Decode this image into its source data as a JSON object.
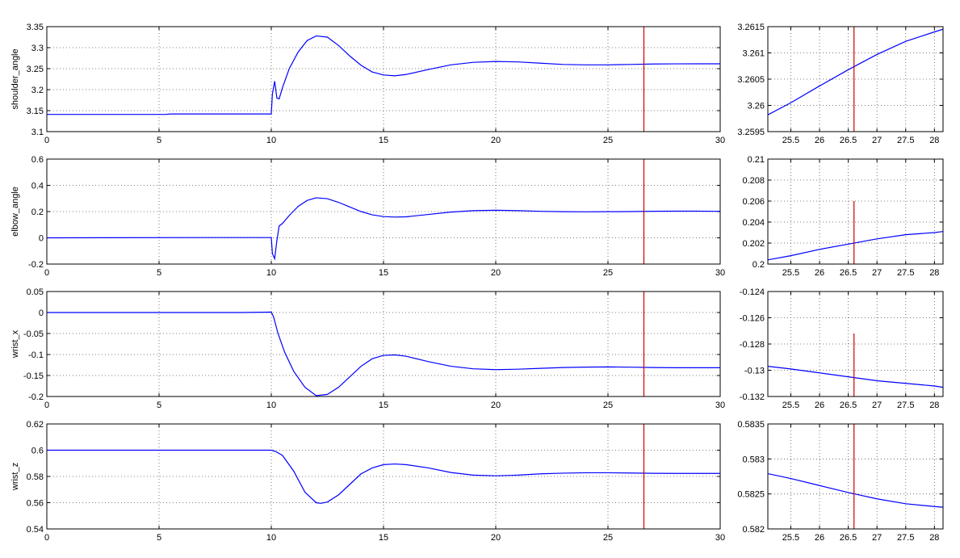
{
  "colors": {
    "signal": "#0000ff",
    "marker": "#cc0000",
    "axes": "#000000",
    "grid": "#555555"
  },
  "chart_data": [
    {
      "type": "line",
      "panel": "main",
      "row": 0,
      "ylabel": "shoulder_angle",
      "xlim": [
        0,
        30
      ],
      "ylim": [
        3.1,
        3.35
      ],
      "xticks": [
        0,
        5,
        10,
        15,
        20,
        25,
        30
      ],
      "xtick_labels": [
        "0",
        "5",
        "10",
        "15",
        "20",
        "25",
        "30"
      ],
      "yticks": [
        3.1,
        3.15,
        3.2,
        3.25,
        3.3,
        3.35
      ],
      "ytick_labels": [
        "3.1",
        "3.15",
        "3.2",
        "3.25",
        "3.3",
        "3.35"
      ],
      "grid": true,
      "marker_x": 26.6,
      "marker_ylim": [
        3.1,
        3.35
      ],
      "series": [
        {
          "x": [
            0,
            5.3,
            5.5,
            10,
            10.05,
            10.15,
            10.25,
            10.35,
            10.5,
            10.8,
            11.2,
            11.6,
            12,
            12.5,
            13,
            13.5,
            14,
            14.5,
            15,
            15.5,
            16,
            17,
            18,
            19,
            20,
            21,
            22,
            23,
            24,
            25,
            26,
            27,
            28,
            29,
            30
          ],
          "y": [
            3.141,
            3.141,
            3.142,
            3.142,
            3.19,
            3.22,
            3.18,
            3.178,
            3.205,
            3.25,
            3.29,
            3.317,
            3.328,
            3.325,
            3.305,
            3.28,
            3.258,
            3.242,
            3.235,
            3.233,
            3.236,
            3.248,
            3.259,
            3.265,
            3.267,
            3.266,
            3.263,
            3.26,
            3.259,
            3.259,
            3.26,
            3.261,
            3.2614,
            3.2615,
            3.2615
          ]
        }
      ]
    },
    {
      "type": "line",
      "panel": "zoom",
      "row": 0,
      "ylabel": "",
      "xlim": [
        25.1,
        28.15
      ],
      "ylim": [
        3.2595,
        3.2615
      ],
      "xticks": [
        25.5,
        26,
        26.5,
        27,
        27.5,
        28
      ],
      "xtick_labels": [
        "25.5",
        "26",
        "26.5",
        "27",
        "27.5",
        "28"
      ],
      "yticks": [
        3.2595,
        3.26,
        3.2605,
        3.261,
        3.2615
      ],
      "ytick_labels": [
        "3.2595",
        "3.26",
        "3.2605",
        "3.261",
        "3.2615"
      ],
      "grid": true,
      "marker_x": 26.6,
      "marker_ylim": [
        3.2595,
        3.2615
      ],
      "series": [
        {
          "x": [
            25.1,
            25.5,
            26,
            26.5,
            27,
            27.5,
            28,
            28.15
          ],
          "y": [
            3.25982,
            3.26005,
            3.26037,
            3.26068,
            3.26097,
            3.26122,
            3.2614,
            3.26145
          ]
        }
      ]
    },
    {
      "type": "line",
      "panel": "main",
      "row": 1,
      "ylabel": "elbow_angle",
      "xlim": [
        0,
        30
      ],
      "ylim": [
        -0.2,
        0.6
      ],
      "xticks": [
        0,
        5,
        10,
        15,
        20,
        25,
        30
      ],
      "xtick_labels": [
        "0",
        "5",
        "10",
        "15",
        "20",
        "25",
        "30"
      ],
      "yticks": [
        -0.2,
        0,
        0.2,
        0.4,
        0.6
      ],
      "ytick_labels": [
        "-0.2",
        "0",
        "0.2",
        "0.4",
        "0.6"
      ],
      "grid": true,
      "marker_x": 26.6,
      "marker_ylim": [
        -0.2,
        0.6
      ],
      "series": [
        {
          "x": [
            0,
            7.5,
            10,
            10.05,
            10.15,
            10.25,
            10.35,
            10.5,
            10.8,
            11.2,
            11.6,
            12,
            12.5,
            13,
            13.5,
            14,
            14.5,
            15,
            15.5,
            16,
            17,
            18,
            19,
            20,
            21,
            22,
            23,
            24,
            25,
            26,
            27,
            28,
            29,
            30
          ],
          "y": [
            0,
            0.002,
            0.002,
            -0.12,
            -0.16,
            -0.02,
            0.09,
            0.11,
            0.17,
            0.24,
            0.285,
            0.305,
            0.298,
            0.27,
            0.235,
            0.2,
            0.175,
            0.162,
            0.158,
            0.16,
            0.178,
            0.196,
            0.207,
            0.21,
            0.207,
            0.202,
            0.199,
            0.198,
            0.199,
            0.2,
            0.2025,
            0.203,
            0.203,
            0.202
          ]
        }
      ]
    },
    {
      "type": "line",
      "panel": "zoom",
      "row": 1,
      "ylabel": "",
      "xlim": [
        25.1,
        28.15
      ],
      "ylim": [
        0.2,
        0.21
      ],
      "xticks": [
        25.5,
        26,
        26.5,
        27,
        27.5,
        28
      ],
      "xtick_labels": [
        "25.5",
        "26",
        "26.5",
        "27",
        "27.5",
        "28"
      ],
      "yticks": [
        0.2,
        0.202,
        0.204,
        0.206,
        0.208,
        0.21
      ],
      "ytick_labels": [
        "0.2",
        "0.202",
        "0.204",
        "0.206",
        "0.208",
        "0.21"
      ],
      "grid": true,
      "marker_x": 26.6,
      "marker_ylim": [
        0.2,
        0.206
      ],
      "series": [
        {
          "x": [
            25.1,
            25.5,
            26,
            26.5,
            27,
            27.5,
            28,
            28.15
          ],
          "y": [
            0.2004,
            0.2008,
            0.2014,
            0.2019,
            0.2024,
            0.2028,
            0.203,
            0.2031
          ]
        }
      ]
    },
    {
      "type": "line",
      "panel": "main",
      "row": 2,
      "ylabel": "wrist_x",
      "xlim": [
        0,
        30
      ],
      "ylim": [
        -0.2,
        0.05
      ],
      "xticks": [
        0,
        5,
        10,
        15,
        20,
        25,
        30
      ],
      "xtick_labels": [
        "0",
        "5",
        "10",
        "15",
        "20",
        "25",
        "30"
      ],
      "yticks": [
        -0.2,
        -0.15,
        -0.1,
        -0.05,
        0,
        0.05
      ],
      "ytick_labels": [
        "-0.2",
        "-0.15",
        "-0.1",
        "-0.05",
        "0",
        "0.05"
      ],
      "grid": true,
      "marker_x": 26.6,
      "marker_ylim": [
        -0.2,
        0.05
      ],
      "series": [
        {
          "x": [
            0,
            8.6,
            10,
            10.1,
            10.3,
            10.6,
            11,
            11.5,
            12,
            12.5,
            13,
            13.5,
            14,
            14.5,
            15,
            15.5,
            16,
            17,
            18,
            19,
            20,
            21,
            22,
            23,
            24,
            25,
            26,
            27,
            28,
            29,
            30
          ],
          "y": [
            0,
            0,
            0.001,
            -0.01,
            -0.05,
            -0.095,
            -0.14,
            -0.178,
            -0.198,
            -0.195,
            -0.178,
            -0.153,
            -0.128,
            -0.11,
            -0.102,
            -0.101,
            -0.104,
            -0.117,
            -0.128,
            -0.134,
            -0.136,
            -0.135,
            -0.133,
            -0.131,
            -0.13,
            -0.1295,
            -0.1302,
            -0.131,
            -0.1315,
            -0.1315,
            -0.1315
          ]
        }
      ]
    },
    {
      "type": "line",
      "panel": "zoom",
      "row": 2,
      "ylabel": "",
      "xlim": [
        25.1,
        28.15
      ],
      "ylim": [
        -0.132,
        -0.124
      ],
      "xticks": [
        25.5,
        26,
        26.5,
        27,
        27.5,
        28
      ],
      "xtick_labels": [
        "25.5",
        "26",
        "26.5",
        "27",
        "27.5",
        "28"
      ],
      "yticks": [
        -0.132,
        -0.13,
        -0.128,
        -0.126,
        -0.124
      ],
      "ytick_labels": [
        "-0.132",
        "-0.13",
        "-0.128",
        "-0.126",
        "-0.124"
      ],
      "grid": true,
      "marker_x": 26.6,
      "marker_ylim": [
        -0.132,
        -0.1272
      ],
      "series": [
        {
          "x": [
            25.1,
            25.5,
            26,
            26.5,
            27,
            27.5,
            28,
            28.15
          ],
          "y": [
            -0.1297,
            -0.1299,
            -0.1302,
            -0.1305,
            -0.1308,
            -0.131,
            -0.1312,
            -0.1313
          ]
        }
      ]
    },
    {
      "type": "line",
      "panel": "main",
      "row": 3,
      "ylabel": "wrist_z",
      "xlim": [
        0,
        30
      ],
      "ylim": [
        0.54,
        0.62
      ],
      "xticks": [
        0,
        5,
        10,
        15,
        20,
        25,
        30
      ],
      "xtick_labels": [
        "0",
        "5",
        "10",
        "15",
        "20",
        "25",
        "30"
      ],
      "yticks": [
        0.54,
        0.56,
        0.58,
        0.6,
        0.62
      ],
      "ytick_labels": [
        "0.54",
        "0.56",
        "0.58",
        "0.6",
        "0.62"
      ],
      "grid": true,
      "marker_x": 26.6,
      "marker_ylim": [
        0.54,
        0.62
      ],
      "series": [
        {
          "x": [
            0,
            10,
            10.2,
            10.5,
            11,
            11.5,
            12,
            12.2,
            12.5,
            13,
            13.5,
            14,
            14.5,
            15,
            15.5,
            16,
            17,
            18,
            19,
            20,
            21,
            22,
            23,
            24,
            25,
            26,
            27,
            28,
            29,
            30
          ],
          "y": [
            0.6,
            0.6,
            0.599,
            0.596,
            0.584,
            0.568,
            0.56,
            0.5595,
            0.5605,
            0.566,
            0.574,
            0.582,
            0.5865,
            0.589,
            0.5895,
            0.589,
            0.5865,
            0.583,
            0.581,
            0.5805,
            0.581,
            0.582,
            0.5825,
            0.5828,
            0.5828,
            0.5826,
            0.5824,
            0.5823,
            0.5823,
            0.5823
          ]
        }
      ]
    },
    {
      "type": "line",
      "panel": "zoom",
      "row": 3,
      "ylabel": "",
      "xlim": [
        25.1,
        28.15
      ],
      "ylim": [
        0.582,
        0.5835
      ],
      "xticks": [
        25.5,
        26,
        26.5,
        27,
        27.5,
        28
      ],
      "xtick_labels": [
        "25.5",
        "26",
        "26.5",
        "27",
        "27.5",
        "28"
      ],
      "yticks": [
        0.582,
        0.5825,
        0.583,
        0.5835
      ],
      "ytick_labels": [
        "0.582",
        "0.5825",
        "0.583",
        "0.5835"
      ],
      "grid": true,
      "marker_x": 26.6,
      "marker_ylim": [
        0.582,
        0.5835
      ],
      "series": [
        {
          "x": [
            25.1,
            25.5,
            26,
            26.5,
            27,
            27.5,
            28,
            28.15
          ],
          "y": [
            0.58279,
            0.58272,
            0.58262,
            0.58252,
            0.58243,
            0.58236,
            0.58232,
            0.58231
          ]
        }
      ]
    }
  ]
}
